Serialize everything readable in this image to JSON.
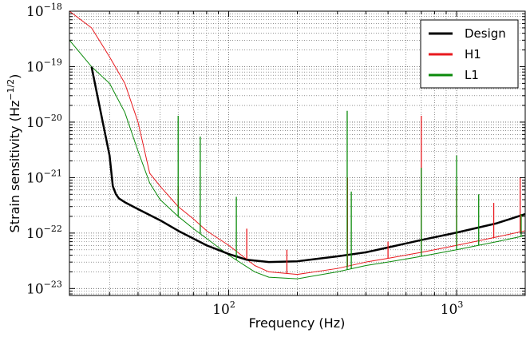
{
  "chart_data": {
    "type": "line",
    "title": "",
    "xlabel": "Frequency (Hz)",
    "ylabel_main": "Strain sensitivity (Hz",
    "ylabel_sup": "−1/2",
    "ylabel_tail": ")",
    "x_scale": "log",
    "y_scale": "log",
    "xlim": [
      20,
      2000
    ],
    "ylim": [
      7.5e-24,
      1e-18
    ],
    "grid": "dotted, major and minor",
    "legend_position": "top-right",
    "x_ticks": [
      {
        "value": 100,
        "base": "10",
        "exp": "2"
      },
      {
        "value": 1000,
        "base": "10",
        "exp": "3"
      }
    ],
    "y_ticks": [
      {
        "value": 1e-18,
        "base": "10",
        "exp": "−18"
      },
      {
        "value": 1e-19,
        "base": "10",
        "exp": "−19"
      },
      {
        "value": 1e-20,
        "base": "10",
        "exp": "−20"
      },
      {
        "value": 1e-21,
        "base": "10",
        "exp": "−21"
      },
      {
        "value": 1e-22,
        "base": "10",
        "exp": "−22"
      },
      {
        "value": 1e-23,
        "base": "10",
        "exp": "−23"
      }
    ],
    "series": [
      {
        "name": "Design",
        "color": "#000000",
        "width": 2.5,
        "x": [
          25,
          28,
          30,
          31,
          32,
          33,
          35,
          40,
          50,
          60,
          80,
          100,
          120,
          150,
          200,
          300,
          400,
          500,
          700,
          1000,
          1500,
          2000
        ],
        "y": [
          1e-19,
          1e-20,
          2.5e-21,
          7e-22,
          5e-22,
          4.2e-22,
          3.6e-22,
          2.7e-22,
          1.7e-22,
          1.1e-22,
          6e-23,
          4.2e-23,
          3.3e-23,
          3e-23,
          3.1e-23,
          3.8e-23,
          4.5e-23,
          5.5e-23,
          7.5e-23,
          1.02e-22,
          1.5e-22,
          2.2e-22
        ]
      },
      {
        "name": "H1",
        "color": "#e8191e",
        "width": 1,
        "x": [
          20,
          25,
          30,
          35,
          40,
          45,
          50,
          60,
          70,
          80,
          100,
          130,
          150,
          200,
          300,
          400,
          500,
          700,
          1000,
          1500,
          2000
        ],
        "y": [
          1e-18,
          5e-19,
          1.5e-19,
          5e-20,
          1e-20,
          1.2e-21,
          7e-22,
          3e-22,
          1.8e-22,
          1.1e-22,
          6e-23,
          2.6e-23,
          2e-23,
          1.8e-23,
          2.3e-23,
          3e-23,
          3.5e-23,
          4.5e-23,
          6e-23,
          8.5e-23,
          1.1e-22
        ]
      },
      {
        "name": "L1",
        "color": "#0a8a0a",
        "width": 1,
        "x": [
          20,
          25,
          30,
          35,
          40,
          45,
          50,
          60,
          70,
          80,
          100,
          130,
          150,
          200,
          300,
          400,
          500,
          700,
          1000,
          1500,
          2000
        ],
        "y": [
          3e-19,
          1e-19,
          5e-20,
          1.5e-20,
          3e-21,
          8e-22,
          4e-22,
          2e-22,
          1.2e-22,
          8e-23,
          4e-23,
          2e-23,
          1.6e-23,
          1.5e-23,
          2e-23,
          2.6e-23,
          3e-23,
          3.8e-23,
          5e-23,
          7e-23,
          9e-23
        ]
      }
    ],
    "spikes": [
      {
        "series": "H1",
        "x": 60,
        "y": 7e-22
      },
      {
        "series": "H1",
        "x": 120,
        "y": 1.2e-22
      },
      {
        "series": "H1",
        "x": 180,
        "y": 5e-23
      },
      {
        "series": "H1",
        "x": 332,
        "y": 1e-21
      },
      {
        "series": "H1",
        "x": 500,
        "y": 7e-23
      },
      {
        "series": "H1",
        "x": 700,
        "y": 1.3e-20
      },
      {
        "series": "H1",
        "x": 1000,
        "y": 7e-22
      },
      {
        "series": "H1",
        "x": 1455,
        "y": 3.5e-22
      },
      {
        "series": "H1",
        "x": 1900,
        "y": 1e-21
      },
      {
        "series": "L1",
        "x": 60,
        "y": 1.3e-20
      },
      {
        "series": "L1",
        "x": 75,
        "y": 5.5e-21
      },
      {
        "series": "L1",
        "x": 108,
        "y": 4.5e-22
      },
      {
        "series": "L1",
        "x": 331,
        "y": 1.6e-20
      },
      {
        "series": "L1",
        "x": 345,
        "y": 5.6e-22
      },
      {
        "series": "L1",
        "x": 700,
        "y": 1.5e-21
      },
      {
        "series": "L1",
        "x": 1000,
        "y": 2.5e-21
      },
      {
        "series": "L1",
        "x": 1250,
        "y": 5e-22
      },
      {
        "series": "L1",
        "x": 1920,
        "y": 2.2e-22
      }
    ]
  }
}
